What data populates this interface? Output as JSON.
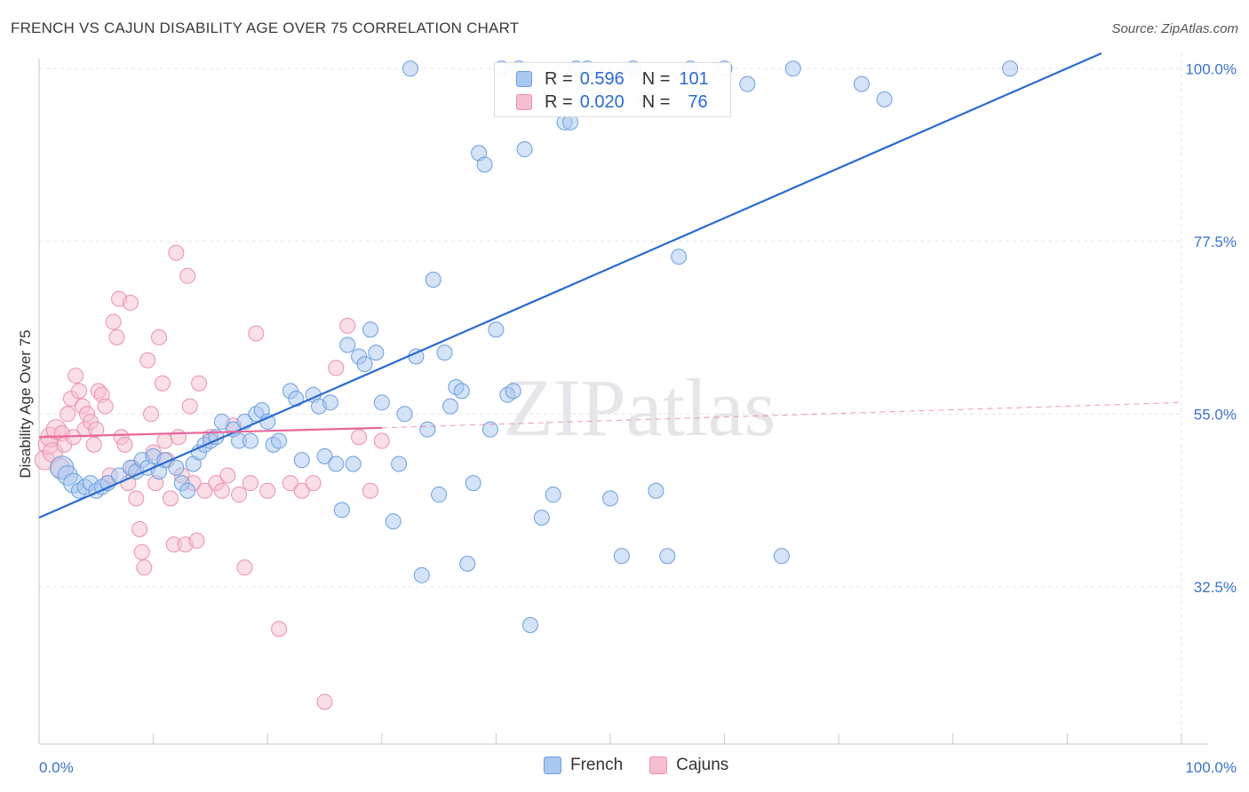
{
  "header": {
    "title": "FRENCH VS CAJUN DISABILITY AGE OVER 75 CORRELATION CHART",
    "source": "Source: ZipAtlas.com"
  },
  "watermark": "ZIPatlas",
  "legend": {
    "french": {
      "r_label": "R =",
      "r_value": "0.596",
      "n_label": "N =",
      "n_value": "101"
    },
    "cajuns": {
      "r_label": "R =",
      "r_value": "0.020",
      "n_label": "N =",
      "n_value": "76"
    }
  },
  "bottom_legend": {
    "french": "French",
    "cajuns": "Cajuns"
  },
  "colors": {
    "french_fill": "#a9c8f0",
    "french_stroke": "#6a9fe0",
    "french_line": "#2a6bd1",
    "cajun_fill": "#f6bfd0",
    "cajun_stroke": "#ec8fae",
    "cajun_line": "#e8679a",
    "grid": "#e3e3e3",
    "tick_label": "#3a73cc"
  },
  "chart_data": {
    "type": "scatter",
    "title": "FRENCH VS CAJUN DISABILITY AGE OVER 75 CORRELATION CHART",
    "ylabel": "Disability Age Over 75",
    "xlabel": "",
    "xlim": [
      0,
      100
    ],
    "ylim": [
      12,
      102
    ],
    "x_tick_labels": [
      "0.0%",
      "100.0%"
    ],
    "y_ticks": [
      32.5,
      55.0,
      77.5,
      100.0
    ],
    "y_tick_labels": [
      "32.5%",
      "55.0%",
      "77.5%",
      "100.0%"
    ],
    "grid": true,
    "series": [
      {
        "name": "French",
        "r": 0.596,
        "n": 101,
        "trend": {
          "x": [
            0,
            93
          ],
          "y": [
            41.5,
            102
          ],
          "dashed_to": null
        },
        "points": [
          [
            2,
            48
          ],
          [
            2.5,
            47
          ],
          [
            3,
            46
          ],
          [
            3.5,
            45
          ],
          [
            4,
            45.5
          ],
          [
            4.5,
            46
          ],
          [
            5,
            45
          ],
          [
            5.5,
            45.5
          ],
          [
            6,
            46
          ],
          [
            7,
            47
          ],
          [
            8,
            48
          ],
          [
            8.5,
            47.5
          ],
          [
            9,
            49
          ],
          [
            9.5,
            48
          ],
          [
            10,
            49.5
          ],
          [
            10.5,
            47.5
          ],
          [
            11,
            49
          ],
          [
            12,
            48
          ],
          [
            12.5,
            46
          ],
          [
            13,
            45
          ],
          [
            13.5,
            48.5
          ],
          [
            14,
            50
          ],
          [
            14.5,
            51
          ],
          [
            15,
            51.5
          ],
          [
            15.5,
            52
          ],
          [
            16,
            54
          ],
          [
            17,
            53
          ],
          [
            17.5,
            51.5
          ],
          [
            18,
            54
          ],
          [
            18.5,
            51.5
          ],
          [
            19,
            55
          ],
          [
            19.5,
            55.5
          ],
          [
            20,
            54
          ],
          [
            20.5,
            51
          ],
          [
            21,
            51.5
          ],
          [
            22,
            58
          ],
          [
            22.5,
            57
          ],
          [
            23,
            49
          ],
          [
            24,
            57.5
          ],
          [
            24.5,
            56
          ],
          [
            25,
            49.5
          ],
          [
            25.5,
            56.5
          ],
          [
            26,
            48.5
          ],
          [
            26.5,
            42.5
          ],
          [
            27,
            64
          ],
          [
            27.5,
            48.5
          ],
          [
            28,
            62.5
          ],
          [
            28.5,
            61.5
          ],
          [
            29,
            66
          ],
          [
            29.5,
            63
          ],
          [
            30,
            56.5
          ],
          [
            31,
            41
          ],
          [
            31.5,
            48.5
          ],
          [
            32,
            55
          ],
          [
            32.5,
            100
          ],
          [
            33,
            62.5
          ],
          [
            33.5,
            34
          ],
          [
            34,
            53
          ],
          [
            34.5,
            72.5
          ],
          [
            35,
            44.5
          ],
          [
            35.5,
            63
          ],
          [
            36,
            56
          ],
          [
            36.5,
            58.5
          ],
          [
            37,
            58
          ],
          [
            37.5,
            35.5
          ],
          [
            38,
            46
          ],
          [
            38.5,
            89
          ],
          [
            39,
            87.5
          ],
          [
            39.5,
            53
          ],
          [
            40,
            66
          ],
          [
            40.5,
            100
          ],
          [
            41,
            57.5
          ],
          [
            41.5,
            58
          ],
          [
            42,
            100
          ],
          [
            42.5,
            89.5
          ],
          [
            43,
            27.5
          ],
          [
            44,
            41.5
          ],
          [
            45,
            44.5
          ],
          [
            46,
            93
          ],
          [
            46.5,
            93
          ],
          [
            47,
            100
          ],
          [
            48,
            100
          ],
          [
            49,
            96
          ],
          [
            50,
            44
          ],
          [
            51,
            36.5
          ],
          [
            52,
            100
          ],
          [
            53,
            96
          ],
          [
            54,
            45
          ],
          [
            55,
            36.5
          ],
          [
            56,
            75.5
          ],
          [
            57,
            100
          ],
          [
            58,
            96
          ],
          [
            60,
            100
          ],
          [
            62,
            98
          ],
          [
            65,
            36.5
          ],
          [
            66,
            100
          ],
          [
            72,
            98
          ],
          [
            74,
            96
          ],
          [
            85,
            100
          ]
        ],
        "size_hint": "larger bubbles near x<3"
      },
      {
        "name": "Cajuns",
        "r": 0.02,
        "n": 76,
        "trend": {
          "x": [
            0,
            30
          ],
          "y": [
            52,
            53.2
          ],
          "dashed_to": [
            100,
            56.5
          ]
        },
        "points": [
          [
            0.5,
            49
          ],
          [
            0.8,
            51
          ],
          [
            1,
            52
          ],
          [
            1.2,
            50
          ],
          [
            1.5,
            53
          ],
          [
            1.8,
            48
          ],
          [
            2,
            52.5
          ],
          [
            2.2,
            51
          ],
          [
            2.5,
            55
          ],
          [
            2.8,
            57
          ],
          [
            3,
            52
          ],
          [
            3.2,
            60
          ],
          [
            3.5,
            58
          ],
          [
            3.8,
            56
          ],
          [
            4,
            53
          ],
          [
            4.2,
            55
          ],
          [
            4.5,
            54
          ],
          [
            4.8,
            51
          ],
          [
            5,
            53
          ],
          [
            5.2,
            58
          ],
          [
            5.5,
            57.5
          ],
          [
            5.8,
            56
          ],
          [
            6,
            46
          ],
          [
            6.2,
            47
          ],
          [
            6.5,
            67
          ],
          [
            6.8,
            65
          ],
          [
            7,
            70
          ],
          [
            7.2,
            52
          ],
          [
            7.5,
            51
          ],
          [
            7.8,
            46
          ],
          [
            8,
            69.5
          ],
          [
            8.2,
            48
          ],
          [
            8.5,
            44
          ],
          [
            8.8,
            40
          ],
          [
            9,
            37
          ],
          [
            9.2,
            35
          ],
          [
            9.5,
            62
          ],
          [
            9.8,
            55
          ],
          [
            10,
            50
          ],
          [
            10.2,
            46
          ],
          [
            10.5,
            65
          ],
          [
            10.8,
            59
          ],
          [
            11,
            51.5
          ],
          [
            11.2,
            49
          ],
          [
            11.5,
            44
          ],
          [
            11.8,
            38
          ],
          [
            12,
            76
          ],
          [
            12.2,
            52
          ],
          [
            12.5,
            47
          ],
          [
            12.8,
            38
          ],
          [
            13,
            73
          ],
          [
            13.2,
            56
          ],
          [
            13.5,
            46
          ],
          [
            13.8,
            38.5
          ],
          [
            14,
            59
          ],
          [
            14.5,
            45
          ],
          [
            15,
            52
          ],
          [
            15.5,
            46
          ],
          [
            16,
            45
          ],
          [
            16.5,
            47
          ],
          [
            17,
            53.5
          ],
          [
            17.5,
            44.5
          ],
          [
            18,
            35
          ],
          [
            18.5,
            46
          ],
          [
            19,
            65.5
          ],
          [
            20,
            45
          ],
          [
            21,
            27
          ],
          [
            22,
            46
          ],
          [
            23,
            45
          ],
          [
            24,
            46
          ],
          [
            25,
            17.5
          ],
          [
            26,
            61
          ],
          [
            27,
            66.5
          ],
          [
            28,
            52
          ],
          [
            29,
            45
          ],
          [
            30,
            51.5
          ]
        ]
      }
    ]
  }
}
